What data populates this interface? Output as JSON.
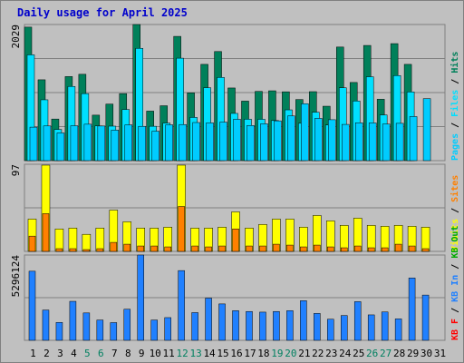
{
  "page": {
    "title": "Daily usage for April 2025"
  },
  "colors": {
    "bg": "#c0c0c0",
    "plot_border": "#808080",
    "grid": "#808080",
    "hits": "#00805a",
    "files": "#00e0ff",
    "pages": "#00ccff",
    "visits": "#ffff00",
    "sites": "#ff8000",
    "kb_in": "#2080ff",
    "kb_out": "#00aa00",
    "kb_f": "#ff0000",
    "legend_sep": "#000000",
    "day_normal": "#000000",
    "day_weekend": "#008060"
  },
  "chart_data": [
    {
      "type": "bar",
      "name": "hits-files-pages",
      "ylim": [
        0,
        2029
      ],
      "ytick_label": "2029",
      "legend": [
        "Pages",
        "Files",
        "Hits"
      ],
      "categories": [
        "1",
        "2",
        "3",
        "4",
        "5",
        "6",
        "7",
        "8",
        "9",
        "10",
        "11",
        "12",
        "13",
        "14",
        "15",
        "16",
        "17",
        "18",
        "19",
        "20",
        "21",
        "22",
        "23",
        "24",
        "25",
        "26",
        "27",
        "28",
        "29",
        "30",
        "31"
      ],
      "series": [
        {
          "name": "Hits",
          "values": [
            1990,
            1205,
            620,
            1253,
            1287,
            678,
            843,
            999,
            2029,
            738,
            818,
            1852,
            1010,
            1435,
            1626,
            1083,
            887,
            1032,
            1041,
            1026,
            911,
            1028,
            811,
            1693,
            1165,
            1717,
            915,
            1744,
            1435,
            0,
            0
          ]
        },
        {
          "name": "Files",
          "values": [
            1577,
            907,
            465,
            1106,
            999,
            518,
            514,
            762,
            1674,
            512,
            560,
            1527,
            644,
            1087,
            1240,
            704,
            617,
            616,
            598,
            757,
            557,
            722,
            531,
            1086,
            889,
            1250,
            681,
            1268,
            1024,
            0,
            0
          ]
        },
        {
          "name": "Pages",
          "values": [
            499,
            517,
            413,
            520,
            543,
            516,
            455,
            533,
            511,
            439,
            534,
            538,
            568,
            563,
            574,
            616,
            524,
            549,
            593,
            666,
            848,
            630,
            610,
            540,
            564,
            562,
            545,
            556,
            657,
            924,
            0
          ]
        }
      ]
    },
    {
      "type": "bar",
      "name": "visits-sites",
      "ylim": [
        0,
        97
      ],
      "ytick_label": "97",
      "legend": [
        "Visits",
        "Sites"
      ],
      "categories": [
        "1",
        "2",
        "3",
        "4",
        "5",
        "6",
        "7",
        "8",
        "9",
        "10",
        "11",
        "12",
        "13",
        "14",
        "15",
        "16",
        "17",
        "18",
        "19",
        "20",
        "21",
        "22",
        "23",
        "24",
        "25",
        "26",
        "27",
        "28",
        "29",
        "30",
        "31"
      ],
      "series": [
        {
          "name": "Visits",
          "values": [
            36,
            96,
            25,
            26,
            19,
            26,
            46,
            33,
            26,
            26,
            27,
            96,
            26,
            26,
            27,
            44,
            26,
            30,
            36,
            36,
            27,
            40,
            34,
            29,
            37,
            29,
            28,
            29,
            28,
            27,
            0
          ]
        },
        {
          "name": "Sites",
          "values": [
            17,
            42,
            3,
            3,
            2,
            3,
            10,
            8,
            6,
            6,
            5,
            50,
            6,
            5,
            6,
            25,
            6,
            6,
            8,
            7,
            5,
            7,
            5,
            4,
            6,
            4,
            4,
            8,
            6,
            3,
            0
          ]
        }
      ]
    },
    {
      "type": "bar",
      "name": "kbytes",
      "ylim": [
        0,
        5296124
      ],
      "ytick_label": "5296124",
      "legend": [
        "KB F",
        "KB In",
        "KB Out"
      ],
      "categories": [
        "1",
        "2",
        "3",
        "4",
        "5",
        "6",
        "7",
        "8",
        "9",
        "10",
        "11",
        "12",
        "13",
        "14",
        "15",
        "16",
        "17",
        "18",
        "19",
        "20",
        "21",
        "22",
        "23",
        "24",
        "25",
        "26",
        "27",
        "28",
        "29",
        "30",
        "31"
      ],
      "series": [
        {
          "name": "KB In",
          "values": [
            4290000,
            1880000,
            1110000,
            2420000,
            1700000,
            1260000,
            1100000,
            1930000,
            5296124,
            1260000,
            1410000,
            4330000,
            1720000,
            2620000,
            2260000,
            1840000,
            1790000,
            1750000,
            1790000,
            1840000,
            2460000,
            1670000,
            1310000,
            1540000,
            2400000,
            1580000,
            1760000,
            1330000,
            3870000,
            2810000,
            0
          ]
        }
      ]
    }
  ],
  "day_labels": {
    "days": [
      "1",
      "2",
      "3",
      "4",
      "5",
      "6",
      "7",
      "8",
      "9",
      "10",
      "11",
      "12",
      "13",
      "14",
      "15",
      "16",
      "17",
      "18",
      "19",
      "20",
      "21",
      "22",
      "23",
      "24",
      "25",
      "26",
      "27",
      "28",
      "29",
      "30",
      "31"
    ],
    "weekend": [
      5,
      6,
      12,
      13,
      19,
      20,
      26,
      27
    ]
  }
}
